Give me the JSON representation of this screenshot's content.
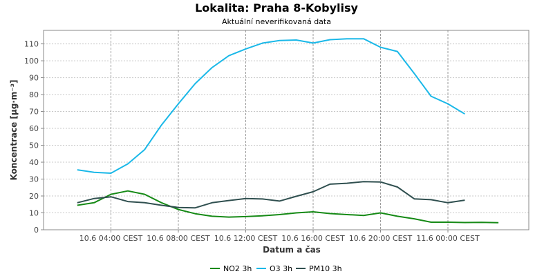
{
  "chart_data": {
    "type": "line",
    "title": "Lokalita: Praha 8-Kobylisy",
    "subtitle": "Aktuální neverifikovaná data",
    "xlabel": "Datum a čas",
    "ylabel": "Koncentrace [µg·m⁻³]",
    "ylim": [
      0,
      118
    ],
    "yticks": [
      0,
      10,
      20,
      30,
      40,
      50,
      60,
      70,
      80,
      90,
      100,
      110
    ],
    "x_hours": [
      2,
      3,
      4,
      5,
      6,
      7,
      8,
      9,
      10,
      11,
      12,
      13,
      14,
      15,
      16,
      17,
      18,
      19,
      20,
      21,
      22,
      23,
      24,
      25,
      26,
      27
    ],
    "xlim_hours": [
      0,
      28.8
    ],
    "xticks": [
      {
        "hour": 4,
        "label": "10.6 04:00 CEST"
      },
      {
        "hour": 8,
        "label": "10.6 08:00 CEST"
      },
      {
        "hour": 12,
        "label": "10.6 12:00 CEST"
      },
      {
        "hour": 16,
        "label": "10.6 16:00 CEST"
      },
      {
        "hour": 20,
        "label": "10.6 20:00 CEST"
      },
      {
        "hour": 24,
        "label": "11.6 00:00 CEST"
      }
    ],
    "grid": true,
    "legend_position": "bottom-center",
    "series": [
      {
        "name": "NO2 3h",
        "color": "#168a16",
        "values": [
          14.5,
          16,
          21,
          23,
          21,
          16,
          12,
          9.5,
          8,
          7.5,
          7.8,
          8.3,
          9,
          10,
          10.6,
          9.6,
          9,
          8.5,
          10,
          8,
          6.5,
          4.5,
          4.5,
          4.3,
          4.4,
          4.2
        ]
      },
      {
        "name": "O3 3h",
        "color": "#1ab8e8",
        "values": [
          35.5,
          34,
          33.5,
          39,
          47.5,
          62,
          74.5,
          86.5,
          96,
          103,
          107,
          110.5,
          112,
          112.3,
          110.5,
          112.5,
          113,
          113,
          108,
          105.5,
          92.5,
          79,
          74.5,
          68.5
        ]
      },
      {
        "name": "PM10 3h",
        "color": "#2f4f4f",
        "values": [
          16,
          18.5,
          19.5,
          16.7,
          16,
          14.5,
          13.2,
          13,
          16,
          17.3,
          18.5,
          18.2,
          17,
          19.8,
          22.5,
          27,
          27.5,
          28.5,
          28.3,
          25.3,
          18.3,
          17.8,
          16,
          17.5
        ]
      }
    ]
  }
}
